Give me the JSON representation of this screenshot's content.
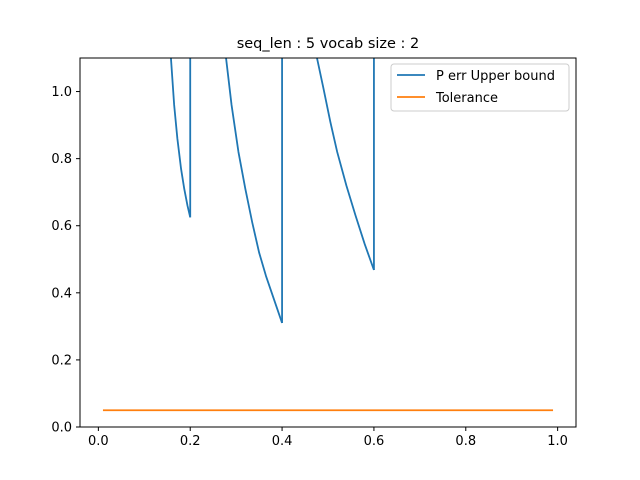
{
  "chart_data": {
    "type": "line",
    "title": "seq_len : 5 vocab size : 2",
    "xlabel": "",
    "ylabel": "",
    "xlim": [
      -0.04,
      1.04
    ],
    "ylim": [
      0,
      1.1
    ],
    "xticks": [
      0.0,
      0.2,
      0.4,
      0.6,
      0.8,
      1.0
    ],
    "xtick_labels": [
      "0.0",
      "0.2",
      "0.4",
      "0.6",
      "0.8",
      "1.0"
    ],
    "yticks": [
      0.0,
      0.2,
      0.4,
      0.6,
      0.8,
      1.0
    ],
    "ytick_labels": [
      "0.0",
      "0.2",
      "0.4",
      "0.6",
      "0.8",
      "1.0"
    ],
    "grid": false,
    "legend_position": "top-right",
    "series": [
      {
        "name": "P err Upper bound",
        "color": "#1f77b4",
        "segments": [
          {
            "x": [
              0.158,
              0.165,
              0.172,
              0.18,
              0.187,
              0.194,
              0.2
            ],
            "y": [
              1.1,
              0.96,
              0.86,
              0.77,
              0.71,
              0.66,
              0.625
            ]
          },
          {
            "x": [
              0.2,
              0.2
            ],
            "y": [
              0.625,
              1.1
            ]
          },
          {
            "x": [
              0.278,
              0.29,
              0.305,
              0.32,
              0.335,
              0.35,
              0.365,
              0.38,
              0.39,
              0.4
            ],
            "y": [
              1.1,
              0.96,
              0.82,
              0.71,
              0.61,
              0.52,
              0.45,
              0.39,
              0.35,
              0.31
            ]
          },
          {
            "x": [
              0.4,
              0.4
            ],
            "y": [
              0.31,
              1.1
            ]
          },
          {
            "x": [
              0.476,
              0.49,
              0.505,
              0.52,
              0.54,
              0.56,
              0.58,
              0.6
            ],
            "y": [
              1.1,
              1.01,
              0.91,
              0.82,
              0.72,
              0.63,
              0.545,
              0.468
            ]
          },
          {
            "x": [
              0.6,
              0.6
            ],
            "y": [
              0.468,
              1.1
            ]
          }
        ]
      },
      {
        "name": "Tolerance",
        "color": "#ff7f0e",
        "segments": [
          {
            "x": [
              0.01,
              0.99
            ],
            "y": [
              0.05,
              0.05
            ]
          }
        ]
      }
    ]
  }
}
